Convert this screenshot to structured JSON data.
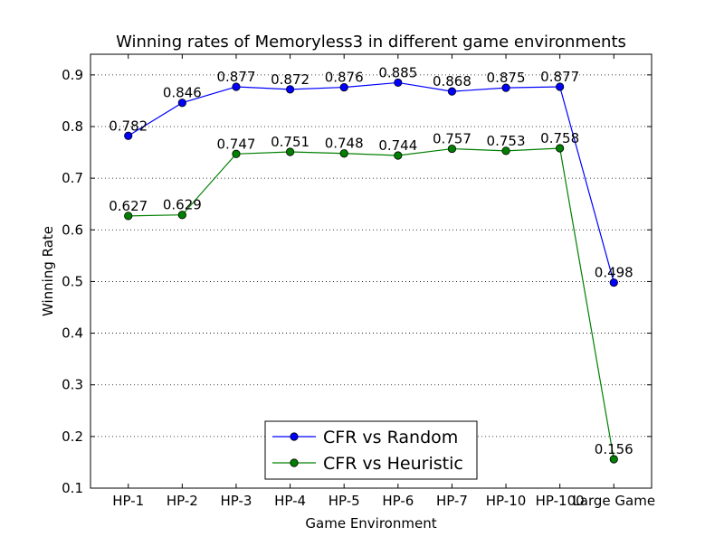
{
  "chart_data": {
    "type": "line",
    "title": "Winning rates of Memoryless3 in different game environments",
    "xlabel": "Game Environment",
    "ylabel": "Winning Rate",
    "categories": [
      "HP-1",
      "HP-2",
      "HP-3",
      "HP-4",
      "HP-5",
      "HP-6",
      "HP-7",
      "HP-10",
      "HP-100",
      "Large Game"
    ],
    "ylim": [
      0.1,
      0.94
    ],
    "yticks": [
      "0.1",
      "0.2",
      "0.3",
      "0.4",
      "0.5",
      "0.6",
      "0.7",
      "0.8",
      "0.9"
    ],
    "grid": "horizontal dotted",
    "legend_position": "bottom-center",
    "series": [
      {
        "name": "CFR vs Random",
        "color": "#0000ff",
        "values": [
          0.782,
          0.846,
          0.877,
          0.872,
          0.876,
          0.885,
          0.868,
          0.875,
          0.877,
          0.498
        ],
        "labels": [
          "0.782",
          "0.846",
          "0.877",
          "0.872",
          "0.876",
          "0.885",
          "0.868",
          "0.875",
          "0.877",
          "0.498"
        ]
      },
      {
        "name": "CFR vs Heuristic",
        "color": "#008000",
        "values": [
          0.627,
          0.629,
          0.747,
          0.751,
          0.748,
          0.744,
          0.757,
          0.753,
          0.758,
          0.156
        ],
        "labels": [
          "0.627",
          "0.629",
          "0.747",
          "0.751",
          "0.748",
          "0.744",
          "0.757",
          "0.753",
          "0.758",
          "0.156"
        ]
      }
    ]
  }
}
